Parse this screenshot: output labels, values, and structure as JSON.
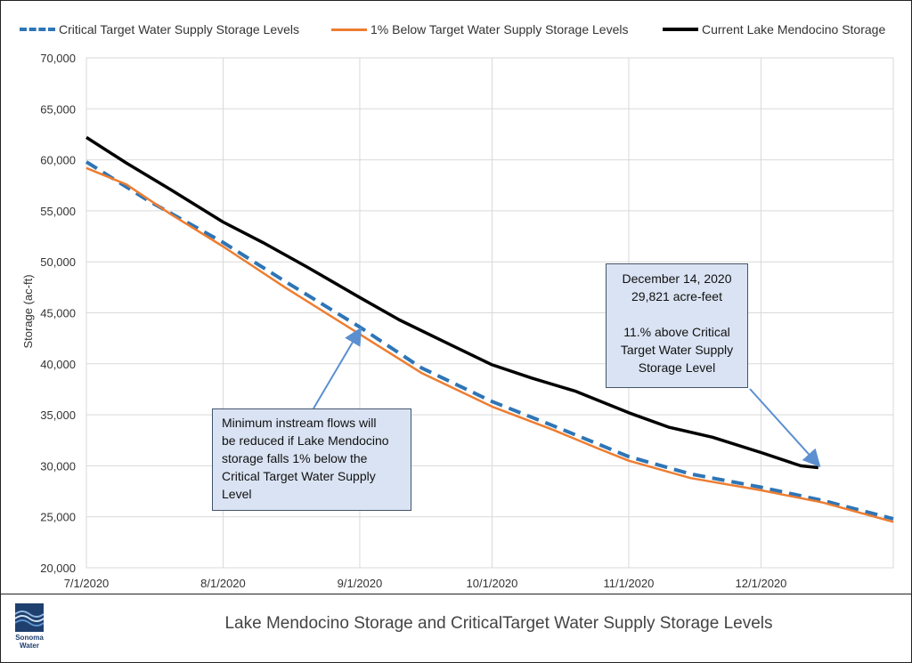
{
  "legend": {
    "items": [
      {
        "label": "Critical Target Water Supply Storage Levels",
        "color": "#2e75b6",
        "style": "dashed"
      },
      {
        "label": "1% Below Target Water Supply Storage Levels",
        "color": "#ed7d31",
        "style": "solid"
      },
      {
        "label": "Current Lake Mendocino Storage",
        "color": "#000000",
        "style": "solid"
      }
    ]
  },
  "callouts": {
    "minimum_flows": {
      "lines": [
        "Minimum instream flows will",
        "be reduced if Lake Mendocino",
        "storage falls 1% below the",
        "Critical Target Water Supply",
        "Level"
      ]
    },
    "december": {
      "lines": [
        "December 14, 2020",
        "29,821 acre-feet",
        "",
        "11.% above Critical",
        "Target Water Supply",
        "Storage Level"
      ]
    }
  },
  "footer": {
    "title": "Lake Mendocino Storage and CriticalTarget Water Supply Storage Levels",
    "logo_lines": [
      "Sonoma",
      "Water"
    ]
  },
  "chart_data": {
    "type": "line",
    "ylabel": "Storage (ac-ft)",
    "xlabel": "",
    "ylim": [
      20000,
      70000
    ],
    "xlim": [
      "2020-07-01",
      "2020-12-31"
    ],
    "yticks": [
      20000,
      25000,
      30000,
      35000,
      40000,
      45000,
      50000,
      55000,
      60000,
      65000,
      70000
    ],
    "ytick_labels": [
      "20,000",
      "25,000",
      "30,000",
      "35,000",
      "40,000",
      "45,000",
      "50,000",
      "55,000",
      "60,000",
      "65,000",
      "70,000"
    ],
    "xticks": [
      "2020-07-01",
      "2020-08-01",
      "2020-09-01",
      "2020-10-01",
      "2020-11-01",
      "2020-12-01"
    ],
    "xtick_labels": [
      "7/1/2020",
      "8/1/2020",
      "9/1/2020",
      "10/1/2020",
      "11/1/2020",
      "12/1/2020"
    ],
    "grid": true,
    "legend_position": "top",
    "series": [
      {
        "name": "Critical Target Water Supply Storage Levels",
        "color": "#2e75b6",
        "style": "dashed",
        "x": [
          "2020-07-01",
          "2020-07-15",
          "2020-08-01",
          "2020-08-15",
          "2020-09-01",
          "2020-09-15",
          "2020-10-01",
          "2020-10-15",
          "2020-11-01",
          "2020-11-15",
          "2020-12-01",
          "2020-12-15",
          "2020-12-31"
        ],
        "y": [
          59800,
          56000,
          51900,
          48100,
          43600,
          39600,
          36300,
          33900,
          30900,
          29200,
          27900,
          26600,
          24800
        ]
      },
      {
        "name": "1% Below Target Water Supply Storage Levels",
        "color": "#ed7d31",
        "style": "solid",
        "x": [
          "2020-07-01",
          "2020-07-10",
          "2020-07-20",
          "2020-08-01",
          "2020-08-15",
          "2020-09-01",
          "2020-09-15",
          "2020-10-01",
          "2020-10-15",
          "2020-10-25",
          "2020-11-01",
          "2020-11-15",
          "2020-12-01",
          "2020-12-15",
          "2020-12-31"
        ],
        "y": [
          59200,
          57600,
          54700,
          51500,
          47500,
          42900,
          39100,
          35800,
          33500,
          31700,
          30500,
          28800,
          27600,
          26400,
          24500
        ]
      },
      {
        "name": "Current Lake Mendocino Storage",
        "color": "#000000",
        "style": "solid",
        "x": [
          "2020-07-01",
          "2020-07-10",
          "2020-07-20",
          "2020-08-01",
          "2020-08-10",
          "2020-08-20",
          "2020-09-01",
          "2020-09-10",
          "2020-09-20",
          "2020-10-01",
          "2020-10-10",
          "2020-10-20",
          "2020-11-01",
          "2020-11-10",
          "2020-11-20",
          "2020-12-01",
          "2020-12-10",
          "2020-12-14"
        ],
        "y": [
          62200,
          59700,
          57100,
          53900,
          51900,
          49500,
          46500,
          44300,
          42200,
          39900,
          38600,
          37300,
          35200,
          33800,
          32800,
          31300,
          30000,
          29821
        ]
      }
    ],
    "annotations": [
      {
        "text_ref": "callouts.minimum_flows",
        "arrow_to": {
          "x": "2020-09-01",
          "y": 43300
        }
      },
      {
        "text_ref": "callouts.december",
        "arrow_to": {
          "x": "2020-12-14",
          "y": 30100
        }
      }
    ]
  }
}
